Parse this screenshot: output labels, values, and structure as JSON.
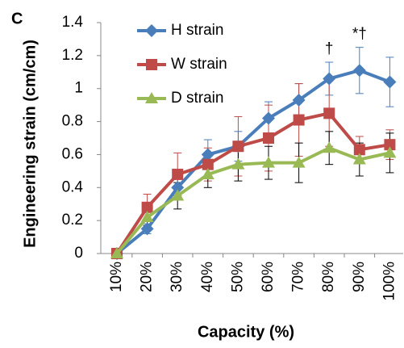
{
  "chart_data": {
    "type": "line",
    "panel_label": "C",
    "x_label": "Capacity (%)",
    "y_label": "Engineering strain (cm/cm)",
    "categories": [
      "10%",
      "20%",
      "30%",
      "40%",
      "50%",
      "60%",
      "70%",
      "80%",
      "90%",
      "100%"
    ],
    "ylim": [
      0,
      1.4
    ],
    "yticks": [
      0,
      0.2,
      0.4,
      0.6,
      0.8,
      1,
      1.2,
      1.4
    ],
    "grid": false,
    "legend": "top-left",
    "series": [
      {
        "name": "H strain",
        "color": "#4a7ebb",
        "marker": "diamond",
        "error_color": "#4a7ebb",
        "values": [
          0,
          0.15,
          0.4,
          0.6,
          0.65,
          0.82,
          0.93,
          1.06,
          1.11,
          1.04
        ],
        "errors": [
          0,
          0.03,
          0.05,
          0.09,
          0.09,
          0.1,
          0.1,
          0.1,
          0.14,
          0.15
        ]
      },
      {
        "name": "W strain",
        "color": "#be4b48",
        "marker": "square",
        "error_color": "#be4b48",
        "values": [
          0,
          0.28,
          0.48,
          0.54,
          0.65,
          0.7,
          0.81,
          0.85,
          0.63,
          0.66
        ],
        "errors": [
          0,
          0.08,
          0.13,
          0.1,
          0.18,
          0.2,
          0.22,
          0.2,
          0.08,
          0.09
        ]
      },
      {
        "name": "D strain",
        "color": "#98b954",
        "marker": "triangle",
        "error_color": "#000000",
        "values": [
          0,
          0.22,
          0.35,
          0.48,
          0.54,
          0.55,
          0.55,
          0.64,
          0.57,
          0.61
        ],
        "errors": [
          0,
          0.05,
          0.08,
          0.08,
          0.1,
          0.1,
          0.12,
          0.1,
          0.1,
          0.12
        ]
      }
    ],
    "annotations": [
      {
        "text": "†",
        "x": "80%"
      },
      {
        "text": "*†",
        "x": "90%"
      }
    ]
  }
}
